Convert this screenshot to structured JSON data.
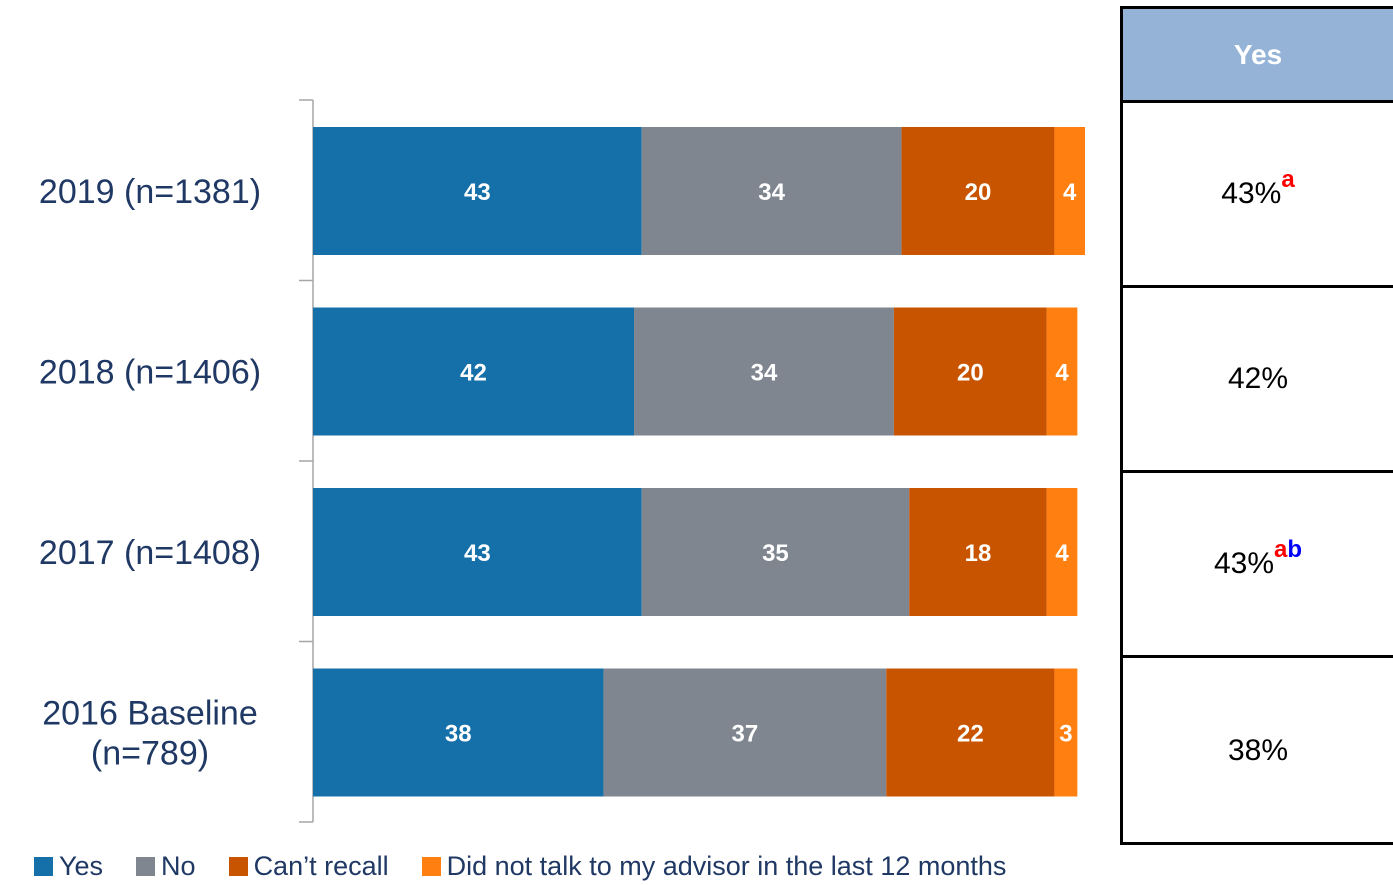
{
  "chart_data": {
    "type": "bar",
    "orientation": "horizontal",
    "stacked": true,
    "categories": [
      "2019 (n=1381)",
      "2018 (n=1406)",
      "2017 (n=1408)",
      "2016 Baseline (n=789)"
    ],
    "category_lines": [
      [
        "2019 (n=1381)"
      ],
      [
        "2018 (n=1406)"
      ],
      [
        "2017 (n=1408)"
      ],
      [
        "2016 Baseline",
        "(n=789)"
      ]
    ],
    "series": [
      {
        "name": "Yes",
        "color": "#1570aa",
        "values": [
          43,
          42,
          43,
          38
        ]
      },
      {
        "name": "No",
        "color": "#7f8690",
        "values": [
          34,
          34,
          35,
          37
        ]
      },
      {
        "name": "Can’t recall",
        "color": "#c95400",
        "values": [
          20,
          20,
          18,
          22
        ]
      },
      {
        "name": "Did not talk to my advisor in the last 12 months",
        "color": "#ff7f10",
        "values": [
          4,
          4,
          4,
          3
        ]
      }
    ],
    "xlim": [
      0,
      101
    ],
    "legend_position": "bottom",
    "grid": false
  },
  "table": {
    "header": "Yes",
    "rows": [
      {
        "value": "43%",
        "sup_a": "a",
        "sup_b": ""
      },
      {
        "value": "42%",
        "sup_a": "",
        "sup_b": ""
      },
      {
        "value": "43%",
        "sup_a": "a",
        "sup_b": "b"
      },
      {
        "value": "38%",
        "sup_a": "",
        "sup_b": ""
      }
    ]
  },
  "legend": {
    "items": [
      "Yes",
      "No",
      "Can’t recall",
      "Did not talk to my advisor in the last 12 months"
    ]
  }
}
